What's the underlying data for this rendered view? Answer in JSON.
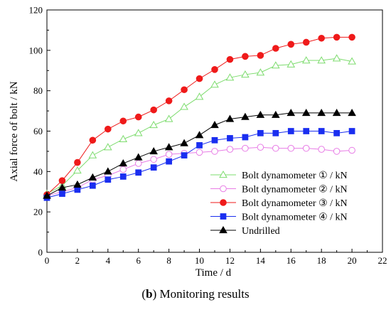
{
  "caption": {
    "letter": "b",
    "text": "Monitoring results"
  },
  "chart_data": {
    "type": "line",
    "xlabel": "Time / d",
    "ylabel": "Axial force of bolt / kN",
    "xlim": [
      0,
      22
    ],
    "ylim": [
      0,
      120
    ],
    "xticks": [
      0,
      2,
      4,
      6,
      8,
      10,
      12,
      14,
      16,
      18,
      20,
      22
    ],
    "yticks": [
      0,
      20,
      40,
      60,
      80,
      100,
      120
    ],
    "grid": false,
    "legend_position": "bottom-right",
    "x": [
      0,
      1,
      2,
      3,
      4,
      5,
      6,
      7,
      8,
      9,
      10,
      11,
      12,
      13,
      14,
      15,
      16,
      17,
      18,
      19,
      20
    ],
    "series": [
      {
        "name": "Bolt dynamometer ① / kN",
        "color": "#7ddc6e",
        "marker": "triangle-open",
        "values": [
          29.0,
          33.0,
          40.5,
          48.0,
          52.0,
          56.0,
          59.0,
          63.0,
          66.0,
          72.0,
          77.0,
          83.0,
          86.5,
          88.0,
          89.0,
          92.5,
          93.0,
          95.0,
          95.0,
          96.0,
          94.5
        ]
      },
      {
        "name": "Bolt dynamometer ② / kN",
        "color": "#e87de6",
        "marker": "circle-open",
        "values": [
          28.0,
          30.0,
          32.0,
          36.0,
          38.0,
          41.0,
          44.0,
          46.0,
          48.5,
          49.0,
          49.5,
          50.0,
          51.0,
          51.5,
          52.0,
          51.5,
          51.5,
          51.5,
          51.0,
          50.0,
          50.5
        ]
      },
      {
        "name": "Bolt dynamometer ③ / kN",
        "color": "#ef1a1a",
        "marker": "circle-filled",
        "values": [
          28.5,
          35.5,
          44.5,
          55.5,
          61.0,
          65.0,
          67.0,
          70.5,
          75.0,
          80.5,
          86.0,
          90.5,
          95.5,
          97.0,
          97.5,
          101.0,
          103.0,
          104.0,
          106.0,
          106.5,
          106.5
        ]
      },
      {
        "name": "Bolt dynamometer ④ / kN",
        "color": "#1a2ef0",
        "marker": "square-filled",
        "values": [
          27.0,
          29.0,
          31.0,
          33.0,
          36.0,
          37.5,
          39.5,
          42.0,
          45.0,
          48.0,
          53.0,
          55.5,
          56.5,
          57.0,
          59.0,
          59.0,
          60.0,
          60.0,
          60.0,
          59.0,
          60.0
        ]
      },
      {
        "name": "Undrilled",
        "color": "#000000",
        "marker": "triangle-filled",
        "values": [
          28.0,
          32.0,
          33.5,
          37.0,
          40.0,
          44.0,
          47.0,
          50.0,
          52.0,
          54.0,
          58.0,
          63.0,
          66.0,
          67.0,
          68.0,
          68.0,
          69.0,
          69.0,
          69.0,
          69.0,
          69.0
        ]
      }
    ]
  }
}
